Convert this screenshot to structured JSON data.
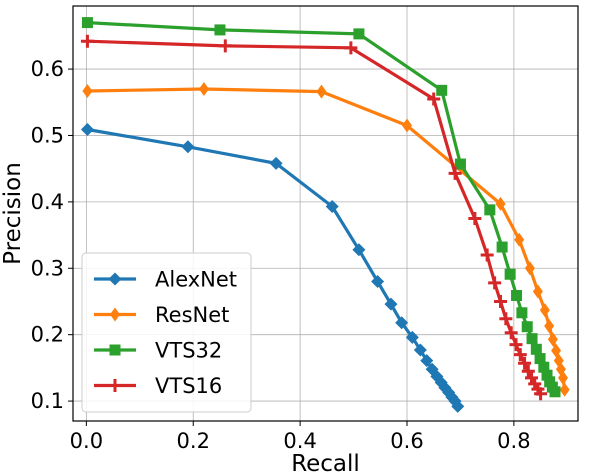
{
  "chart_data": {
    "type": "line",
    "title": "",
    "xlabel": "Recall",
    "ylabel": "Precision",
    "xlim": [
      -0.025,
      0.92
    ],
    "ylim": [
      0.07,
      0.695
    ],
    "xticks": [
      0.0,
      0.2,
      0.4,
      0.6,
      0.8
    ],
    "xtick_labels": [
      "0.0",
      "0.2",
      "0.4",
      "0.6",
      "0.8"
    ],
    "yticks": [
      0.1,
      0.2,
      0.3,
      0.4,
      0.5,
      0.6
    ],
    "ytick_labels": [
      "0.1",
      "0.2",
      "0.3",
      "0.4",
      "0.5",
      "0.6"
    ],
    "grid": true,
    "legend_position": "lower-left",
    "series": [
      {
        "name": "AlexNet",
        "color": "#1f77b4",
        "marker": "diamond",
        "x": [
          0.002,
          0.19,
          0.355,
          0.46,
          0.51,
          0.545,
          0.57,
          0.59,
          0.61,
          0.625,
          0.637,
          0.647,
          0.656,
          0.664,
          0.671,
          0.678,
          0.684,
          0.69,
          0.695
        ],
        "y": [
          0.509,
          0.483,
          0.458,
          0.393,
          0.328,
          0.28,
          0.246,
          0.218,
          0.196,
          0.177,
          0.161,
          0.148,
          0.137,
          0.128,
          0.12,
          0.113,
          0.106,
          0.1,
          0.092
        ]
      },
      {
        "name": "ResNet",
        "color": "#ff7f0e",
        "marker": "thin_diamond",
        "x": [
          0.002,
          0.22,
          0.44,
          0.6,
          0.775,
          0.81,
          0.83,
          0.845,
          0.858,
          0.866,
          0.873,
          0.879,
          0.884,
          0.888,
          0.892,
          0.895
        ],
        "y": [
          0.567,
          0.57,
          0.566,
          0.515,
          0.397,
          0.343,
          0.3,
          0.265,
          0.237,
          0.213,
          0.193,
          0.176,
          0.161,
          0.148,
          0.135,
          0.117
        ]
      },
      {
        "name": "VTS32",
        "color": "#2ca02c",
        "marker": "square",
        "x": [
          0.002,
          0.25,
          0.51,
          0.665,
          0.7,
          0.755,
          0.778,
          0.793,
          0.805,
          0.815,
          0.825,
          0.834,
          0.842,
          0.849,
          0.856,
          0.862,
          0.867,
          0.872,
          0.877
        ],
        "y": [
          0.67,
          0.659,
          0.653,
          0.568,
          0.457,
          0.388,
          0.332,
          0.291,
          0.259,
          0.233,
          0.212,
          0.194,
          0.178,
          0.164,
          0.151,
          0.139,
          0.129,
          0.121,
          0.114
        ]
      },
      {
        "name": "VTS16",
        "color": "#d62728",
        "marker": "plus",
        "x": [
          0.002,
          0.26,
          0.495,
          0.65,
          0.69,
          0.727,
          0.75,
          0.764,
          0.775,
          0.785,
          0.795,
          0.804,
          0.812,
          0.82,
          0.827,
          0.833,
          0.839,
          0.845,
          0.85
        ],
        "y": [
          0.642,
          0.635,
          0.632,
          0.555,
          0.443,
          0.375,
          0.32,
          0.278,
          0.25,
          0.224,
          0.203,
          0.185,
          0.17,
          0.157,
          0.145,
          0.135,
          0.126,
          0.118,
          0.111
        ]
      }
    ]
  }
}
